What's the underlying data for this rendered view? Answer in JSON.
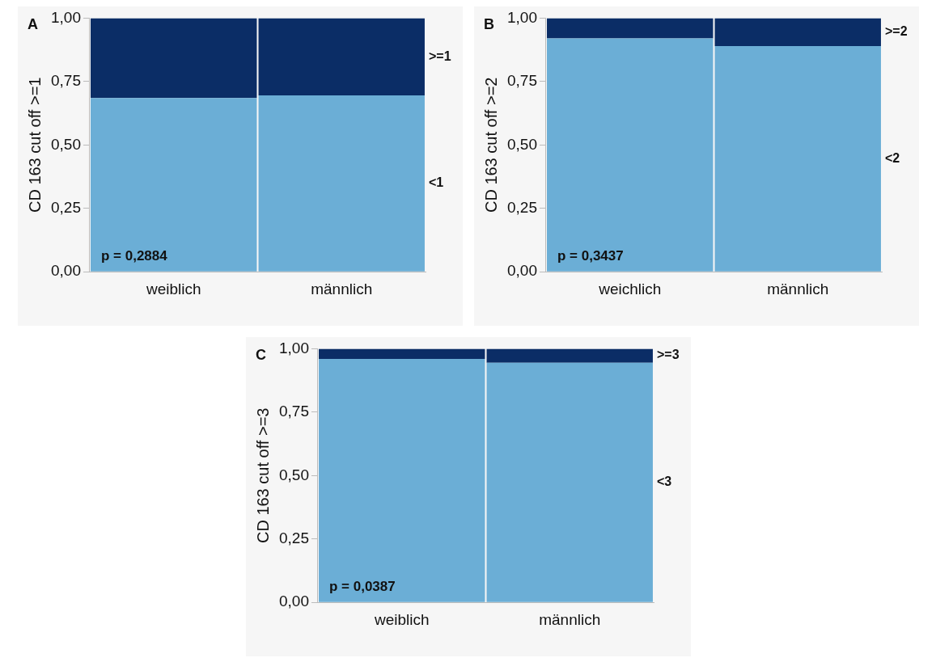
{
  "chart_data": [
    {
      "type": "bar",
      "title": "A",
      "ylabel": "CD 163 cut off >=1",
      "categories": [
        "weiblich",
        "männlich"
      ],
      "stacked": true,
      "legend": false,
      "grid": false,
      "annotations": [
        "p = 0,2884"
      ],
      "ylim": [
        0,
        1
      ],
      "yticks": [
        {
          "value": 0,
          "label": "0,00"
        },
        {
          "value": 0.25,
          "label": "0,25"
        },
        {
          "value": 0.5,
          "label": "0,50"
        },
        {
          "value": 0.75,
          "label": "0,75"
        },
        {
          "value": 1,
          "label": "1,00"
        }
      ],
      "series": [
        {
          "name": "<1",
          "color": "#6baed6",
          "values": [
            0.685,
            0.695
          ]
        },
        {
          "name": ">=1",
          "color": "#0b2d66",
          "values": [
            0.315,
            0.305
          ]
        }
      ]
    },
    {
      "type": "bar",
      "title": "B",
      "ylabel": "CD 163 cut off >=2",
      "categories": [
        "weichlich",
        "männlich"
      ],
      "stacked": true,
      "legend": false,
      "grid": false,
      "annotations": [
        "p = 0,3437"
      ],
      "ylim": [
        0,
        1
      ],
      "yticks": [
        {
          "value": 0,
          "label": "0,00"
        },
        {
          "value": 0.25,
          "label": "0,25"
        },
        {
          "value": 0.5,
          "label": "0,50"
        },
        {
          "value": 0.75,
          "label": "0,75"
        },
        {
          "value": 1,
          "label": "1,00"
        }
      ],
      "series": [
        {
          "name": "<2",
          "color": "#6baed6",
          "values": [
            0.92,
            0.89
          ]
        },
        {
          "name": ">=2",
          "color": "#0b2d66",
          "values": [
            0.08,
            0.11
          ]
        }
      ]
    },
    {
      "type": "bar",
      "title": "C",
      "ylabel": "CD 163 cut off >=3",
      "categories": [
        "weiblich",
        "männlich"
      ],
      "stacked": true,
      "legend": false,
      "grid": false,
      "annotations": [
        "p = 0,0387"
      ],
      "ylim": [
        0,
        1
      ],
      "yticks": [
        {
          "value": 0,
          "label": "0,00"
        },
        {
          "value": 0.25,
          "label": "0,25"
        },
        {
          "value": 0.5,
          "label": "0,50"
        },
        {
          "value": 0.75,
          "label": "0,75"
        },
        {
          "value": 1,
          "label": "1,00"
        }
      ],
      "series": [
        {
          "name": "<3",
          "color": "#6baed6",
          "values": [
            0.96,
            0.945
          ]
        },
        {
          "name": ">=3",
          "color": "#0b2d66",
          "values": [
            0.04,
            0.055
          ]
        }
      ]
    }
  ]
}
